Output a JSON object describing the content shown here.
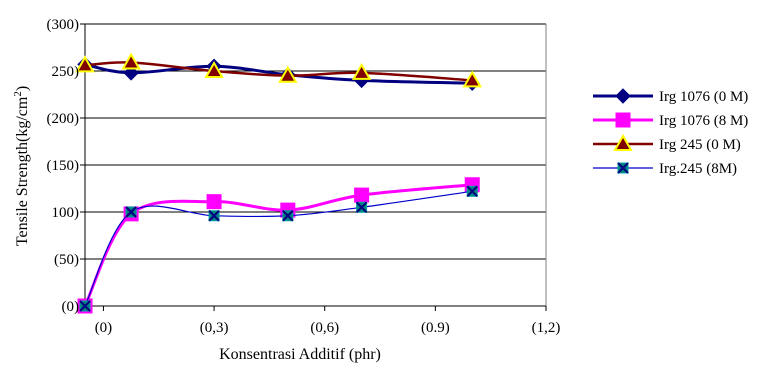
{
  "chart_data": {
    "type": "line",
    "xlabel": "Konsentrasi Additif (phr)",
    "ylabel_main": "Tensile Strength(kg/cm",
    "ylabel_sup": "2",
    "ylabel_tail": ")",
    "xlim": [
      -0.05,
      1.2
    ],
    "ylim": [
      0,
      300
    ],
    "x_ticks": [
      {
        "value": 0,
        "label": "(0)"
      },
      {
        "value": 0.3,
        "label": "(0,3)"
      },
      {
        "value": 0.6,
        "label": "(0,6)"
      },
      {
        "value": 0.9,
        "label": "(0.9)"
      },
      {
        "value": 1.2,
        "label": "(1,2)"
      }
    ],
    "y_ticks": [
      {
        "value": 0,
        "label": "(0)"
      },
      {
        "value": 50,
        "label": "(50)"
      },
      {
        "value": 100,
        "label": "100)"
      },
      {
        "value": 150,
        "label": "(150)"
      },
      {
        "value": 200,
        "label": "(200)"
      },
      {
        "value": 250,
        "label": "250)"
      },
      {
        "value": 300,
        "label": "(300)"
      }
    ],
    "grid": "horizontal",
    "legend_position": "right",
    "series": [
      {
        "name": "Irg 1076 (0 M)",
        "color": "#000080",
        "marker": "diamond",
        "marker_fill": "#000080",
        "line_width": 3,
        "points": [
          [
            -0.05,
            257
          ],
          [
            0.075,
            248
          ],
          [
            0.3,
            255
          ],
          [
            0.5,
            246
          ],
          [
            0.7,
            240
          ],
          [
            1.0,
            237
          ]
        ]
      },
      {
        "name": "Irg 1076 (8 M)",
        "color": "#ff00ff",
        "marker": "square",
        "marker_fill": "#ff00ff",
        "line_width": 3,
        "points": [
          [
            -0.05,
            0
          ],
          [
            0.075,
            98
          ],
          [
            0.3,
            111
          ],
          [
            0.5,
            102
          ],
          [
            0.7,
            118
          ],
          [
            1.0,
            129
          ]
        ]
      },
      {
        "name": "Irg 245 (0 M)",
        "color": "#800000",
        "marker": "triangle",
        "marker_fill": "#800000",
        "marker_stroke": "#ffff00",
        "line_width": 2.5,
        "points": [
          [
            -0.05,
            256
          ],
          [
            0.075,
            259
          ],
          [
            0.3,
            250
          ],
          [
            0.5,
            245
          ],
          [
            0.7,
            248
          ],
          [
            1.0,
            240
          ]
        ]
      },
      {
        "name": "Irg.245 (8M)",
        "color": "#0000cc",
        "marker": "x-square",
        "marker_fill": "#008080",
        "line_width": 1.2,
        "points": [
          [
            -0.05,
            0
          ],
          [
            0.075,
            100
          ],
          [
            0.3,
            96
          ],
          [
            0.5,
            96
          ],
          [
            0.7,
            105
          ],
          [
            1.0,
            122
          ]
        ]
      }
    ]
  }
}
